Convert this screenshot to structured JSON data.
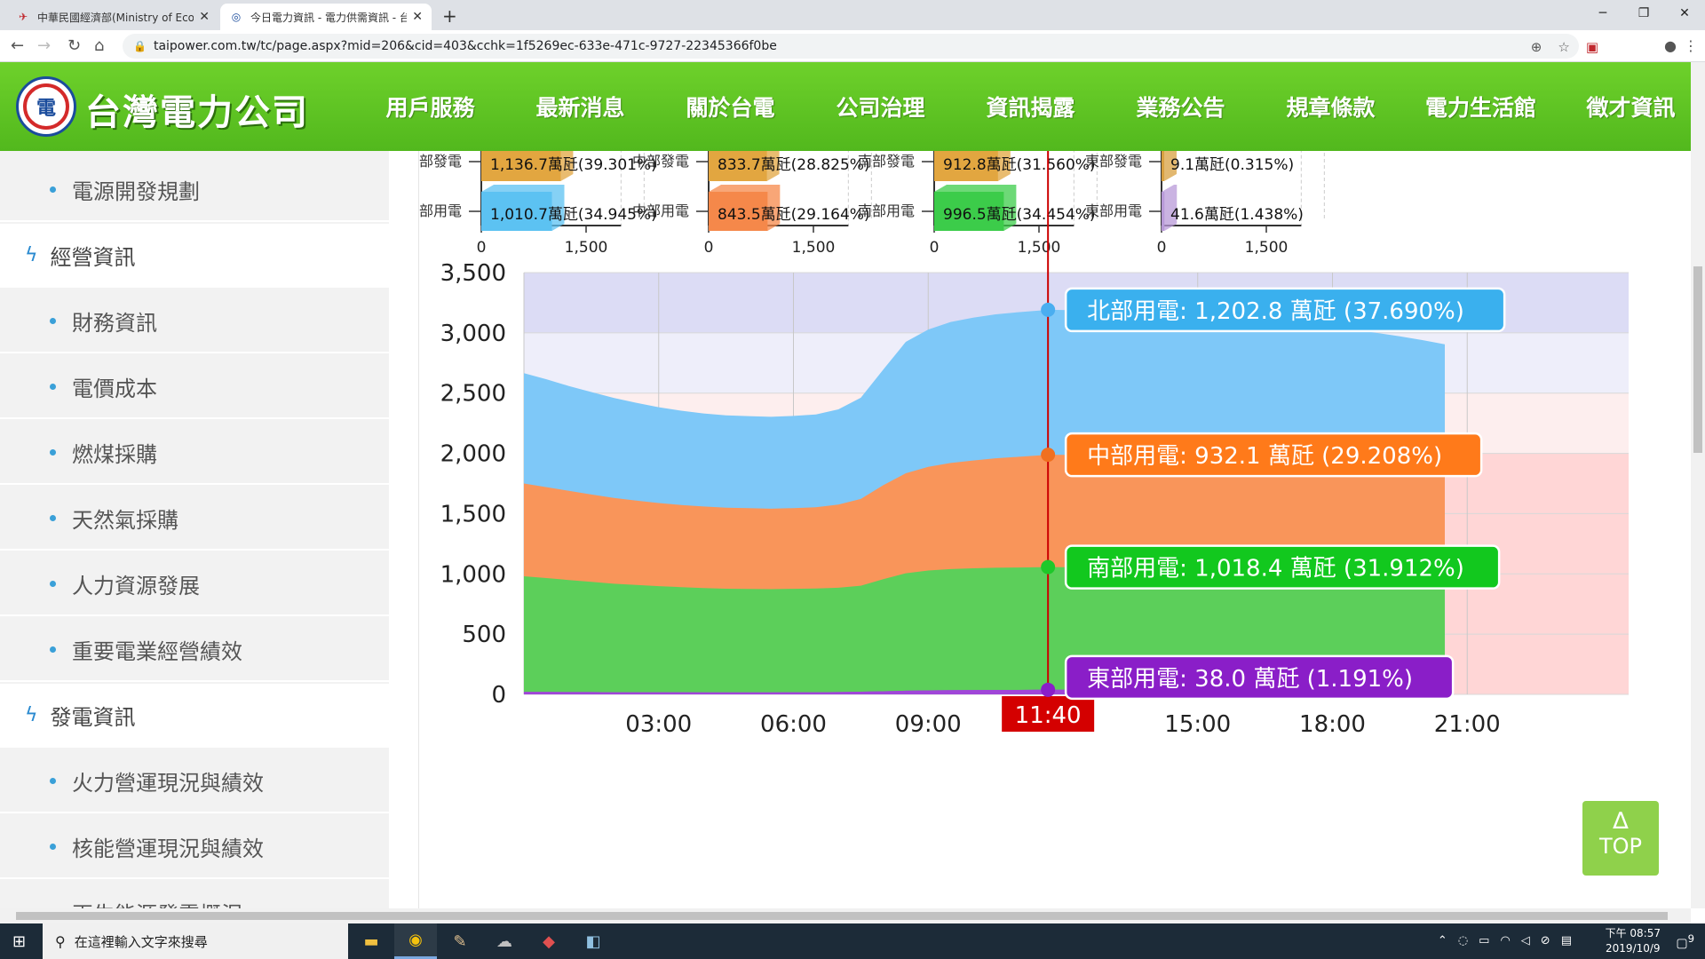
{
  "browser": {
    "tabs": [
      {
        "title": "中華民國經濟部(Ministry of Econ",
        "active": false
      },
      {
        "title": "今日電力資訊 - 電力供需資訊 - 台",
        "active": true
      }
    ],
    "new_tab": "+",
    "url": "taipower.com.tw/tc/page.aspx?mid=206&cid=403&cchk=1f5269ec-633e-471c-9727-22345366f0be",
    "controls": {
      "minimize": "─",
      "restore": "❐",
      "close": "✕"
    }
  },
  "site": {
    "logo_text": "台灣電力公司",
    "logo_mark": "電",
    "nav": [
      "用戶服務",
      "最新消息",
      "關於台電",
      "公司治理",
      "資訊揭露",
      "業務公告",
      "規章條款",
      "電力生活館",
      "徵才資訊"
    ],
    "active_nav": "資訊揭露"
  },
  "sidebar": {
    "items": [
      {
        "label": "電源開發規劃",
        "type": "sub"
      },
      {
        "label": "經營資訊",
        "type": "cat"
      },
      {
        "label": "財務資訊",
        "type": "sub"
      },
      {
        "label": "電價成本",
        "type": "sub"
      },
      {
        "label": "燃煤採購",
        "type": "sub"
      },
      {
        "label": "天然氣採購",
        "type": "sub"
      },
      {
        "label": "人力資源發展",
        "type": "sub"
      },
      {
        "label": "重要電業經營績效",
        "type": "sub"
      },
      {
        "label": "發電資訊",
        "type": "cat"
      },
      {
        "label": "火力營運現況與績效",
        "type": "sub"
      },
      {
        "label": "核能營運現況與績效",
        "type": "sub"
      },
      {
        "label": "再生能源發電概況",
        "type": "sub"
      }
    ]
  },
  "colors": {
    "north": "#7ec8f8",
    "central": "#f9955a",
    "south": "#5ccf5a",
    "east": "#a046d8",
    "north_tag": "#3ab0ee",
    "central_tag": "#ff7a1a",
    "south_tag": "#12c81e",
    "east_tag": "#8a1ec8",
    "cursor": "#cc0000"
  },
  "chart_data": [
    {
      "type": "bar",
      "region": "north",
      "categories": [
        "北部發電",
        "北部用電"
      ],
      "values": [
        1136.7,
        1010.7
      ],
      "labels": [
        "1,136.7萬瓩(39.301%)",
        "1,010.7萬瓩(34.945%)"
      ],
      "bar_colors": [
        "#e2a640",
        "#5cc2f2"
      ],
      "xlim": [
        0,
        2000
      ],
      "ticks": [
        "0",
        "1,500"
      ]
    },
    {
      "type": "bar",
      "region": "central",
      "categories": [
        "中部發電",
        "中部用電"
      ],
      "values": [
        833.7,
        843.5
      ],
      "labels": [
        "833.7萬瓩(28.825%)",
        "843.5萬瓩(29.164%)"
      ],
      "bar_colors": [
        "#e2a640",
        "#f5884a"
      ],
      "xlim": [
        0,
        2000
      ],
      "ticks": [
        "0",
        "1,500"
      ]
    },
    {
      "type": "bar",
      "region": "south",
      "categories": [
        "南部發電",
        "南部用電"
      ],
      "values": [
        912.8,
        996.5
      ],
      "labels": [
        "912.8萬瓩(31.560%)",
        "996.5萬瓩(34.454%)"
      ],
      "bar_colors": [
        "#e2a640",
        "#3ccc4a"
      ],
      "xlim": [
        0,
        2000
      ],
      "ticks": [
        "0",
        "1,500"
      ]
    },
    {
      "type": "bar",
      "region": "east",
      "categories": [
        "東部發電",
        "東部用電"
      ],
      "values": [
        9.1,
        41.6
      ],
      "labels": [
        "9.1萬瓩(0.315%)",
        "41.6萬瓩(1.438%)"
      ],
      "bar_colors": [
        "#d8a040",
        "#b89ad8"
      ],
      "xlim": [
        0,
        2000
      ],
      "ticks": [
        "0",
        "1,500"
      ]
    },
    {
      "type": "area",
      "stacked": true,
      "ylim": [
        0,
        3500
      ],
      "y_ticks": [
        "0",
        "500",
        "1,000",
        "1,500",
        "2,000",
        "2,500",
        "3,000",
        "3,500"
      ],
      "x_ticks": [
        "03:00",
        "06:00",
        "09:00",
        "11:40",
        "15:00",
        "18:00",
        "21:00"
      ],
      "xlim": [
        0,
        24
      ],
      "current_time": "11:40",
      "current_hour": 11.667,
      "bands": [
        {
          "from": 0,
          "to": 2000,
          "shade": "#ffd6d6"
        },
        {
          "from": 2000,
          "to": 2500,
          "shade": "#fdeeee"
        },
        {
          "from": 2500,
          "to": 3000,
          "shade": "#eeeefa"
        },
        {
          "from": 3000,
          "to": 3500,
          "shade": "#dcdcf5"
        }
      ],
      "x": [
        0,
        0.5,
        1,
        1.5,
        2,
        2.5,
        3,
        3.5,
        4,
        4.5,
        5,
        5.5,
        6,
        6.5,
        7,
        7.5,
        8,
        8.5,
        9,
        9.5,
        10,
        10.5,
        11,
        11.5,
        11.667,
        12,
        12.5,
        13,
        13.5,
        14,
        14.5,
        15,
        15.5,
        16,
        16.5,
        17,
        17.5,
        18,
        18.5,
        19,
        19.5,
        20,
        20.5
      ],
      "series": [
        {
          "name": "東部用電",
          "values": [
            20,
            20,
            19,
            19,
            18,
            18,
            18,
            18,
            17,
            17,
            17,
            17,
            18,
            18,
            19,
            22,
            26,
            30,
            33,
            35,
            36,
            37,
            37,
            38,
            38,
            38,
            38,
            38,
            38,
            38,
            38,
            38,
            38,
            38,
            37,
            37,
            37,
            37,
            37,
            36,
            36,
            36,
            35
          ]
        },
        {
          "name": "南部用電",
          "values": [
            960,
            945,
            930,
            915,
            900,
            890,
            880,
            872,
            866,
            860,
            858,
            856,
            858,
            860,
            866,
            880,
            930,
            975,
            995,
            1005,
            1010,
            1014,
            1016,
            1018,
            1018.4,
            1018,
            1017,
            1015,
            1013,
            1010,
            1008,
            1005,
            1002,
            1000,
            998,
            996,
            993,
            990,
            985,
            980,
            975,
            970,
            965
          ]
        },
        {
          "name": "中部用電",
          "values": [
            770,
            755,
            740,
            725,
            712,
            700,
            690,
            682,
            676,
            672,
            670,
            668,
            670,
            675,
            690,
            720,
            780,
            830,
            860,
            880,
            895,
            908,
            918,
            928,
            932.1,
            932,
            930,
            926,
            922,
            918,
            914,
            910,
            906,
            902,
            898,
            893,
            888,
            882,
            875,
            868,
            860,
            852,
            845
          ]
        },
        {
          "name": "北部用電",
          "values": [
            915,
            895,
            870,
            850,
            830,
            812,
            795,
            782,
            772,
            766,
            764,
            762,
            765,
            770,
            790,
            840,
            960,
            1090,
            1140,
            1170,
            1185,
            1195,
            1200,
            1202,
            1202.8,
            1202,
            1198,
            1190,
            1185,
            1180,
            1175,
            1170,
            1165,
            1160,
            1155,
            1150,
            1145,
            1138,
            1128,
            1115,
            1100,
            1082,
            1060
          ]
        }
      ],
      "tooltips": [
        {
          "region": "north",
          "text": "北部用電: 1,202.8 萬瓩 (37.690%)",
          "value": 3191.3
        },
        {
          "region": "central",
          "text": "中部用電: 932.1 萬瓩 (29.208%)",
          "value": 1988.5
        },
        {
          "region": "south",
          "text": "南部用電: 1,018.4 萬瓩 (31.912%)",
          "value": 1056.4
        },
        {
          "region": "east",
          "text": "東部用電: 38.0 萬瓩 (1.191%)",
          "value": 38
        }
      ]
    }
  ],
  "top_button": {
    "arrow": "∆",
    "label": "TOP"
  },
  "taskbar": {
    "search_placeholder": "在這裡輸入文字來搜尋",
    "time": "下午 08:57",
    "date": "2019/10/9",
    "notifications": "9"
  }
}
